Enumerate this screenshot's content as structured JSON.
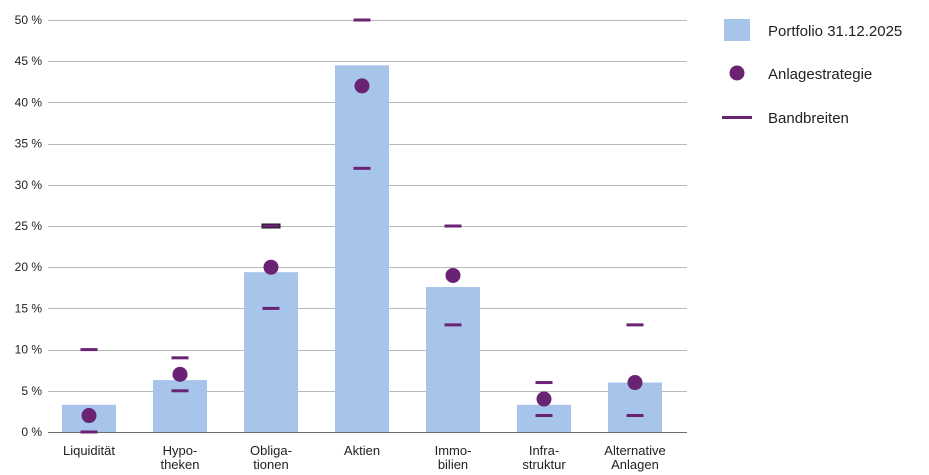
{
  "chart_data": {
    "type": "bar",
    "categories": [
      [
        "Liquidität"
      ],
      [
        "Hypo-",
        "theken"
      ],
      [
        "Obliga-",
        "tionen"
      ],
      [
        "Aktien"
      ],
      [
        "Immo-",
        "bilien"
      ],
      [
        "Infra-",
        "struktur"
      ],
      [
        "Alternative",
        "Anlagen"
      ]
    ],
    "series": [
      {
        "name": "Portfolio 31.12.2025",
        "kind": "bar",
        "values": [
          3.3,
          6.3,
          19.4,
          44.5,
          17.6,
          3.3,
          6.0
        ]
      },
      {
        "name": "Anlagestrategie",
        "kind": "point",
        "values": [
          2,
          7,
          20,
          42,
          19,
          4,
          6
        ]
      },
      {
        "name": "Bandbreiten",
        "kind": "range",
        "min": [
          0,
          5,
          15,
          32,
          13,
          2,
          2
        ],
        "max": [
          10,
          9,
          25,
          50,
          25,
          6,
          13
        ]
      }
    ],
    "ylim": [
      0,
      50
    ],
    "yticks": [
      "0 %",
      "5 %",
      "10 %",
      "15 %",
      "20 %",
      "25 %",
      "30 %",
      "35 %",
      "40 %",
      "45 %",
      "50 %"
    ],
    "ytick_values": [
      0,
      5,
      10,
      15,
      20,
      25,
      30,
      35,
      40,
      45,
      50
    ],
    "grid": true,
    "legend_position": "top-right",
    "colors": {
      "bar": "#a7c5ea",
      "point": "#6a2272",
      "band": "#6a2272",
      "band_highlight": "#1a1a1a",
      "grid": "#b8b8b8",
      "axis": "#6e6e6e"
    }
  }
}
